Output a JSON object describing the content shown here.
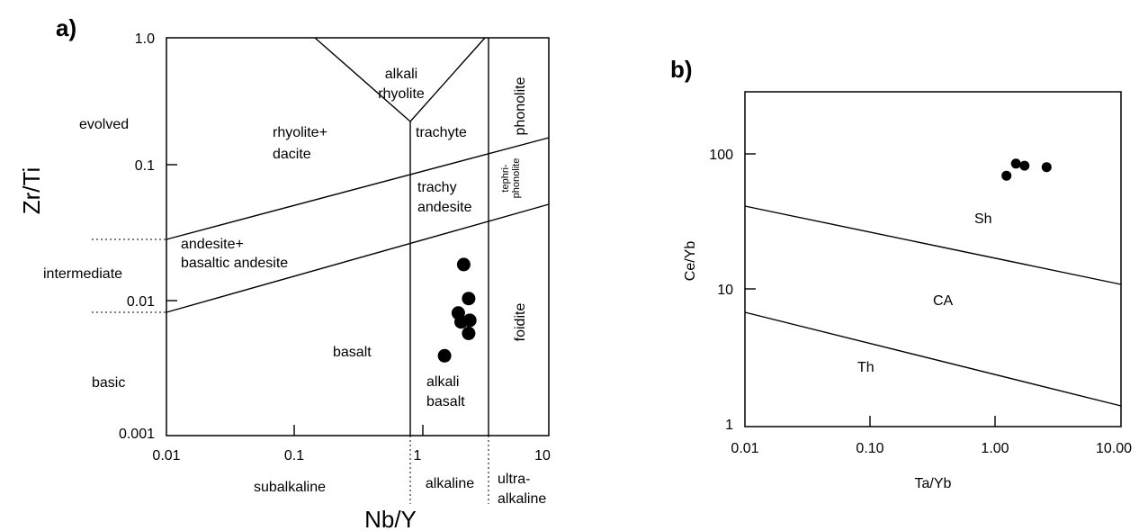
{
  "chart_data": [
    {
      "panel_label": "a)",
      "type": "scatter",
      "xscale": "log",
      "yscale": "log",
      "xlim": [
        0.01,
        10
      ],
      "ylim": [
        0.001,
        1.0
      ],
      "xlabel": "Nb/Y",
      "ylabel": "Zr/Ti",
      "xticks": [
        "0.01",
        "0.1",
        "1",
        "10"
      ],
      "yticks": [
        "0.001",
        "0.01",
        "0.1",
        "1.0"
      ],
      "fields": [
        "alkali rhyolite",
        "rhyolite+ dacite",
        "trachyte",
        "phonolite",
        "tephri- phonolite",
        "trachy andesite",
        "andesite+ basaltic andesite",
        "basalt",
        "alkali basalt",
        "foidite"
      ],
      "side_labels": [
        "evolved",
        "intermediate",
        "basic"
      ],
      "bottom_labels": [
        "subalkaline",
        "alkaline",
        "ultra- alkaline"
      ],
      "points": [
        {
          "x": 2.15,
          "y": 0.0195
        },
        {
          "x": 2.35,
          "y": 0.0108
        },
        {
          "x": 1.95,
          "y": 0.0084
        },
        {
          "x": 2.05,
          "y": 0.0072
        },
        {
          "x": 2.4,
          "y": 0.0074
        },
        {
          "x": 2.35,
          "y": 0.0059
        },
        {
          "x": 1.52,
          "y": 0.004
        }
      ]
    },
    {
      "panel_label": "b)",
      "type": "scatter",
      "xscale": "log",
      "yscale": "log",
      "xlim": [
        0.01,
        10.0
      ],
      "ylim": [
        1,
        300
      ],
      "xlabel": "Ta/Yb",
      "ylabel": "Ce/Yb",
      "xticks": [
        "0.01",
        "0.10",
        "1.00",
        "10.00"
      ],
      "yticks": [
        "1",
        "10",
        "100"
      ],
      "fields": [
        "Sh",
        "CA",
        "Th"
      ],
      "points": [
        {
          "x": 1.22,
          "y": 70
        },
        {
          "x": 1.45,
          "y": 86
        },
        {
          "x": 1.7,
          "y": 83
        },
        {
          "x": 2.55,
          "y": 81
        }
      ]
    }
  ]
}
